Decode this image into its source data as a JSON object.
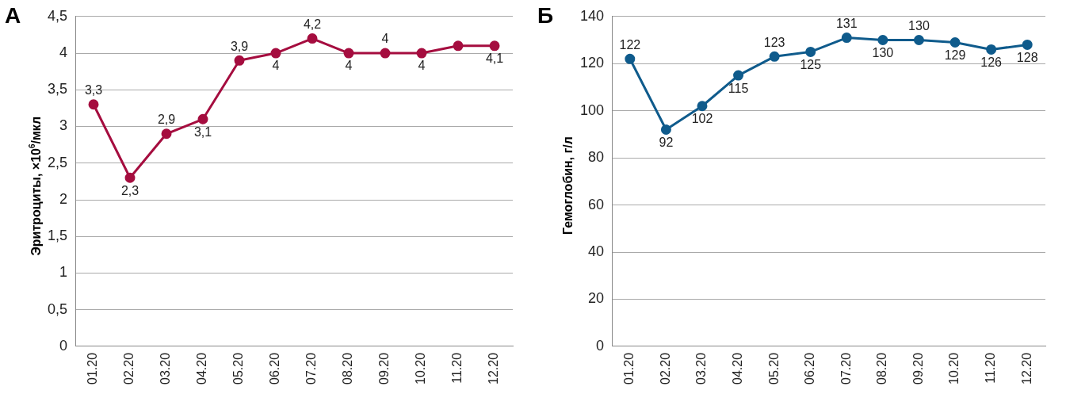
{
  "chart_data": [
    {
      "type": "line",
      "title": "А",
      "ylabel": "Эритроциты, ×10$^{6}$/мкл",
      "categories": [
        "01.20",
        "02.20",
        "03.20",
        "04.20",
        "05.20",
        "06.20",
        "07.20",
        "08.20",
        "09.20",
        "10.20",
        "11.20",
        "12.20"
      ],
      "series": [
        {
          "color": "#a50d3f",
          "values": [
            3.3,
            2.3,
            2.9,
            3.1,
            3.9,
            4,
            4.2,
            4,
            4,
            4,
            4.1,
            4.1
          ],
          "value_labels": [
            "3,3",
            "2,3",
            "2,9",
            "3,1",
            "3,9",
            "4",
            "4,2",
            "4",
            "4",
            "4",
            null,
            "4,1"
          ]
        }
      ],
      "ylim": [
        0,
        4.5
      ],
      "yticks": [
        0,
        {
          "value": 0.5,
          "label": "0,5"
        },
        1,
        {
          "value": 1.5,
          "label": "1,5"
        },
        2,
        {
          "value": 2.5,
          "label": "2,5"
        },
        3,
        {
          "value": 3.5,
          "label": "3,5"
        },
        4,
        {
          "value": 4.5,
          "label": "4,5"
        }
      ],
      "grid": "y",
      "legend": false,
      "marker": "circle",
      "line_style": "solid"
    },
    {
      "type": "line",
      "title": "Б",
      "ylabel": "Гемоглобин, г/л",
      "categories": [
        "01.20",
        "02.20",
        "03.20",
        "04.20",
        "05.20",
        "06.20",
        "07.20",
        "08.20",
        "09.20",
        "10.20",
        "11.20",
        "12.20"
      ],
      "series": [
        {
          "color": "#0f5b8c",
          "values": [
            122,
            92,
            102,
            115,
            123,
            125,
            131,
            130,
            130,
            129,
            126,
            128
          ]
        }
      ],
      "ylim": [
        0,
        140
      ],
      "yticks": [
        0,
        20,
        40,
        60,
        80,
        100,
        120,
        140
      ],
      "grid": "y",
      "legend": false,
      "marker": "circle",
      "line_style": "solid",
      "data_labels": true
    }
  ]
}
